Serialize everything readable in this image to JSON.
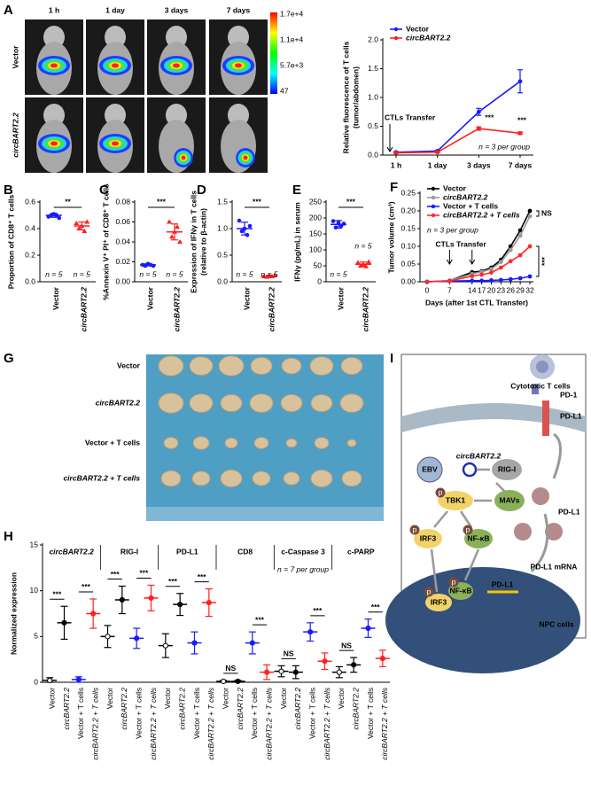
{
  "panels": [
    "A",
    "B",
    "C",
    "D",
    "E",
    "F",
    "G",
    "H",
    "I"
  ],
  "imaging": {
    "timepoints": [
      "1 h",
      "1 day",
      "3 days",
      "7 days"
    ],
    "rows": [
      "Vector",
      "circBART2.2"
    ],
    "colorbar": [
      "1.7e+4",
      "1.1e+4",
      "5.7e+3",
      "47"
    ]
  },
  "photo": {
    "rows": [
      "Vector",
      "circBART2.2",
      "Vector + T cells",
      "circBART2.2 + T cells"
    ]
  },
  "diagram": {
    "labels": [
      "Cytotoxic T cells",
      "PD-1",
      "PD-L1",
      "EBV",
      "circBART2.2",
      "RIG-I",
      "MAVs",
      "TBK1",
      "IRF3",
      "NF-κB",
      "PD-L1",
      "PD-L1 mRNA",
      "NPC cells",
      "IRF3",
      "NF-κB",
      "PD-L1"
    ],
    "phospho": "p"
  },
  "chart_data": [
    {
      "type": "line",
      "ylabel": [
        "Relative fluorescence of T cells",
        "(tumor/abdomen)"
      ],
      "categories": [
        "1 h",
        "1 day",
        "3 days",
        "7 days"
      ],
      "series": [
        {
          "name": "Vector",
          "color": "#1a1aff",
          "values": [
            0.05,
            0.07,
            0.75,
            1.28
          ],
          "errors": [
            0.01,
            0.01,
            0.06,
            0.2
          ]
        },
        {
          "name": "circBART2.2",
          "color": "#ff2020",
          "values": [
            0.04,
            0.05,
            0.46,
            0.38
          ],
          "errors": [
            0.01,
            0.01,
            0.03,
            0.02
          ]
        }
      ],
      "ylim": [
        0,
        2
      ],
      "yticks": [
        {
          "value": 0,
          "label": "0.0"
        },
        {
          "value": 0.5,
          "label": "0.5"
        },
        {
          "value": 1,
          "label": "1.0"
        },
        {
          "value": 1.5,
          "label": "1.5"
        },
        {
          "value": 2,
          "label": "2.0"
        }
      ],
      "annotations": [
        "CTLs Transfer",
        "***",
        "***",
        "n = 3 per group"
      ]
    },
    {
      "type": "dot",
      "ylabel": [
        "Proportion of CD8⁺ T cells"
      ],
      "categories": [
        "Vector",
        "circBART2.2"
      ],
      "values": [
        0.5,
        0.42
      ],
      "errors": [
        0.015,
        0.03
      ],
      "points": [
        [
          0.49,
          0.5,
          0.51,
          0.5,
          0.48
        ],
        [
          0.44,
          0.4,
          0.42,
          0.38,
          0.45
        ]
      ],
      "colors": [
        "#1a1aff",
        "#ff2020"
      ],
      "ylim": [
        0,
        0.6
      ],
      "yticks": [
        {
          "value": 0,
          "label": "0.0"
        },
        {
          "value": 0.2,
          "label": "0.2"
        },
        {
          "value": 0.4,
          "label": "0.4"
        },
        {
          "value": 0.6,
          "label": "0.6"
        }
      ],
      "sig": "**",
      "n": [
        "n = 5",
        "n = 5"
      ]
    },
    {
      "type": "dot",
      "ylabel": [
        "%Annexin V⁺ PI⁺ of CD8⁺ T cells"
      ],
      "categories": [
        "Vector",
        "circBART2.2"
      ],
      "values": [
        0.017,
        0.05
      ],
      "errors": [
        0.001,
        0.008
      ],
      "points": [
        [
          0.017,
          0.016,
          0.018,
          0.017,
          0.016
        ],
        [
          0.06,
          0.045,
          0.05,
          0.055,
          0.04
        ]
      ],
      "colors": [
        "#1a1aff",
        "#ff2020"
      ],
      "ylim": [
        0,
        0.08
      ],
      "yticks": [
        {
          "value": 0,
          "label": "0.00"
        },
        {
          "value": 0.02,
          "label": "0.02"
        },
        {
          "value": 0.04,
          "label": "0.04"
        },
        {
          "value": 0.06,
          "label": "0.06"
        },
        {
          "value": 0.08,
          "label": "0.08"
        }
      ],
      "sig": "***",
      "n": [
        "n = 5",
        "n = 5"
      ]
    },
    {
      "type": "dot",
      "ylabel": [
        "Expression of IFNγ in T cells",
        "(relative to β-actin)"
      ],
      "categories": [
        "Vector",
        "circBART2.2"
      ],
      "values": [
        1.0,
        0.1
      ],
      "errors": [
        0.12,
        0.02
      ],
      "points": [
        [
          1.15,
          0.95,
          1.0,
          0.88,
          1.05
        ],
        [
          0.1,
          0.09,
          0.11,
          0.1,
          0.12
        ]
      ],
      "colors": [
        "#1a1aff",
        "#ff2020"
      ],
      "ylim": [
        0,
        1.5
      ],
      "yticks": [
        {
          "value": 0,
          "label": "0.0"
        },
        {
          "value": 0.5,
          "label": "0.5"
        },
        {
          "value": 1,
          "label": "1.0"
        },
        {
          "value": 1.5,
          "label": "1.5"
        }
      ],
      "sig": "***",
      "n": [
        "n = 5",
        "n = 5"
      ]
    },
    {
      "type": "dot",
      "ylabel": [
        "IFNγ (pg/mL) in serum"
      ],
      "categories": [
        "Vector",
        "circBART2.2"
      ],
      "values": [
        180,
        55
      ],
      "errors": [
        12,
        7
      ],
      "points": [
        [
          190,
          170,
          185,
          175,
          182
        ],
        [
          60,
          50,
          55,
          48,
          62
        ]
      ],
      "colors": [
        "#1a1aff",
        "#ff2020"
      ],
      "ylim": [
        0,
        250
      ],
      "yticks": [
        0,
        50,
        100,
        150,
        200,
        250
      ],
      "sig": "***",
      "n": [
        "n = 5",
        "n = 5"
      ]
    },
    {
      "type": "line",
      "ylabel": [
        "Tumor volume (cm³)"
      ],
      "xlabel": "Days (after 1st CTL Transfer)",
      "x": [
        0,
        7,
        14,
        17,
        20,
        23,
        26,
        29,
        32
      ],
      "xlim": [
        0,
        32
      ],
      "xticks": [
        0,
        7,
        14,
        17,
        20,
        23,
        26,
        29,
        32
      ],
      "series": [
        {
          "name": "Vector",
          "color": "#000000",
          "values": [
            0,
            0.003,
            0.027,
            0.03,
            0.04,
            0.062,
            0.1,
            0.145,
            0.2
          ]
        },
        {
          "name": "circBART2.2",
          "color": "#999999",
          "values": [
            0,
            0.003,
            0.022,
            0.028,
            0.036,
            0.056,
            0.09,
            0.13,
            0.185
          ]
        },
        {
          "name": "Vector + T cells",
          "color": "#1a1aff",
          "values": [
            0,
            0.002,
            0.003,
            0.003,
            0.004,
            0.005,
            0.007,
            0.01,
            0.015
          ]
        },
        {
          "name": "circBART2.2 + T cells",
          "color": "#ff2a2a",
          "values": [
            0,
            0.002,
            0.016,
            0.02,
            0.026,
            0.04,
            0.058,
            0.075,
            0.1
          ]
        }
      ],
      "ylim": [
        0,
        0.25
      ],
      "yticks": [
        {
          "value": 0,
          "label": "0.00"
        },
        {
          "value": 0.05,
          "label": "0.05"
        },
        {
          "value": 0.1,
          "label": "0.10"
        },
        {
          "value": 0.15,
          "label": "0.15"
        },
        {
          "value": 0.2,
          "label": "0.20"
        },
        {
          "value": 0.25,
          "label": "0.25"
        }
      ],
      "annotations": [
        "CTLs Transfer",
        "n = 3 per group",
        "NS",
        "***"
      ]
    },
    {
      "type": "grouped_dot",
      "ylabel": [
        "Normalized expression"
      ],
      "categories": [
        "Vector",
        "circBART2.2",
        "Vector + T cells",
        "circBART2.2 + T cells"
      ],
      "colors": [
        "#000000",
        "#000000",
        "#1a1aff",
        "#ff2020"
      ],
      "series": [
        {
          "name": "circBART2.2",
          "values": [
            0.2,
            6.5,
            0.3,
            7.5
          ],
          "errors": [
            0.3,
            1.8,
            0.3,
            1.6
          ],
          "sig": [
            "***",
            "***"
          ]
        },
        {
          "name": "RIG-I",
          "values": [
            5.0,
            9.0,
            4.8,
            9.2
          ],
          "errors": [
            1.2,
            1.5,
            1.1,
            1.4
          ],
          "sig": [
            "***",
            "***"
          ]
        },
        {
          "name": "PD-L1",
          "values": [
            4.0,
            8.5,
            4.3,
            8.7
          ],
          "errors": [
            1.3,
            1.2,
            1.2,
            1.5
          ],
          "sig": [
            "***",
            "***"
          ]
        },
        {
          "name": "CD8",
          "values": [
            0.1,
            0.1,
            4.3,
            1.1
          ],
          "errors": [
            0.1,
            0.1,
            1.2,
            0.8
          ],
          "sig": [
            "NS",
            "***"
          ]
        },
        {
          "name": "c-Caspase 3",
          "values": [
            1.2,
            1.1,
            5.5,
            2.3
          ],
          "errors": [
            0.6,
            0.7,
            1.0,
            0.9
          ],
          "sig": [
            "NS",
            "***"
          ]
        },
        {
          "name": "c-PARP",
          "values": [
            1.1,
            1.9,
            5.9,
            2.6
          ],
          "errors": [
            0.6,
            0.8,
            1.0,
            0.9
          ],
          "sig": [
            "NS",
            "***"
          ]
        }
      ],
      "ylim": [
        0,
        15
      ],
      "yticks": [
        0,
        5,
        10,
        15
      ],
      "note": "n = 7 per group"
    }
  ]
}
